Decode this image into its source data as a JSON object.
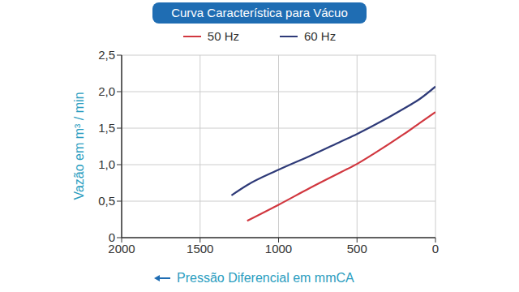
{
  "chart_data": {
    "type": "line",
    "title": "Curva Característica para Vácuo",
    "x_label": "Pressão Diferencial em mmCA",
    "y_label": "Vazão em m³ / min",
    "xlim": [
      2000,
      0
    ],
    "xticks": [
      2000,
      1500,
      1000,
      500,
      0
    ],
    "ylim": [
      0,
      2.5
    ],
    "yticks": [
      0,
      {
        "value": 0.5,
        "label": "0,5"
      },
      {
        "value": 1,
        "label": "1,0"
      },
      {
        "value": 1.5,
        "label": "1,5"
      },
      {
        "value": 2,
        "label": "2,0"
      },
      {
        "value": 2.5,
        "label": "2,5"
      }
    ],
    "grid": true,
    "legend": "top",
    "series": [
      {
        "name": "50 Hz",
        "color": "#d1373f",
        "x": [
          1200,
          1000,
          800,
          600,
          500,
          400,
          200,
          100,
          0
        ],
        "values": [
          0.23,
          0.45,
          0.68,
          0.9,
          1.01,
          1.14,
          1.42,
          1.57,
          1.72
        ]
      },
      {
        "name": "60 Hz",
        "color": "#2e3a78",
        "x": [
          1300,
          1200,
          1000,
          800,
          600,
          500,
          400,
          200,
          100,
          0
        ],
        "values": [
          0.58,
          0.72,
          0.93,
          1.12,
          1.32,
          1.42,
          1.53,
          1.77,
          1.9,
          2.07
        ]
      }
    ]
  }
}
